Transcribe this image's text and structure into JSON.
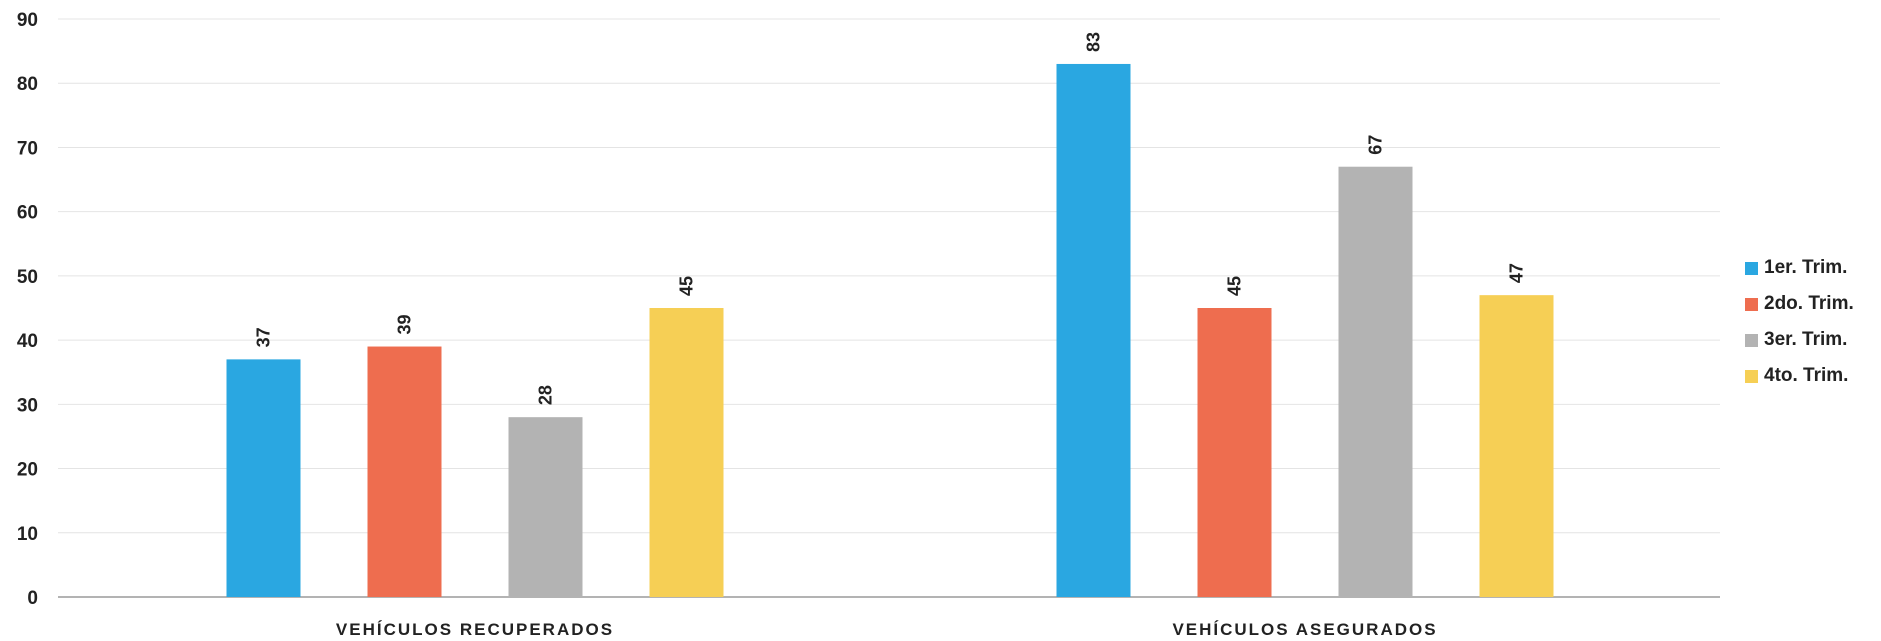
{
  "chart_data": {
    "type": "bar",
    "categories": [
      "VEHÍCULOS RECUPERADOS",
      "VEHÍCULOS ASEGURADOS"
    ],
    "series": [
      {
        "name": "1er. Trim.",
        "values": [
          37,
          83
        ],
        "color": "#2aa7e1"
      },
      {
        "name": "2do. Trim.",
        "values": [
          39,
          45
        ],
        "color": "#ee6d4f"
      },
      {
        "name": "3er. Trim.",
        "values": [
          28,
          67
        ],
        "color": "#b3b3b3"
      },
      {
        "name": "4to. Trim.",
        "values": [
          45,
          47
        ],
        "color": "#f6cf55"
      }
    ],
    "ylim": [
      0,
      90
    ],
    "yticks": [
      0,
      10,
      20,
      30,
      40,
      50,
      60,
      70,
      80,
      90
    ],
    "grid": true,
    "legend_position": "right",
    "data_labels": "rotated-vertical"
  }
}
